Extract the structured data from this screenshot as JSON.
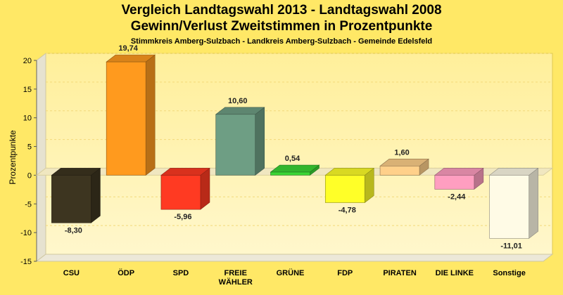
{
  "chart_data": {
    "type": "bar",
    "title": "Vergleich Landtagswahl 2013 - Landtagswahl 2008",
    "subtitle": "Gewinn/Verlust Zweitstimmen in Prozentpunkte",
    "subsubtitle": "Stimmkreis Amberg-Sulzbach - Landkreis Amberg-Sulzbach - Gemeinde Edelsfeld",
    "ylabel": "Prozentpunkte",
    "xlabel": "",
    "ylim": [
      -15,
      20
    ],
    "yticks": [
      20,
      15,
      10,
      5,
      0,
      -5,
      -10,
      -15
    ],
    "yticklabels": [
      "20",
      "15",
      "10",
      "5",
      "0",
      "-5",
      "-10",
      "-15"
    ],
    "grid": true,
    "categories": [
      [
        "CSU"
      ],
      [
        "ÖDP"
      ],
      [
        "SPD"
      ],
      [
        "FREIE",
        "WÄHLER"
      ],
      [
        "GRÜNE"
      ],
      [
        "FDP"
      ],
      [
        "PIRATEN"
      ],
      [
        "DIE LINKE"
      ],
      [
        "Sonstige"
      ]
    ],
    "values": [
      -8.3,
      19.74,
      -5.96,
      10.6,
      0.54,
      -4.78,
      1.6,
      -2.44,
      -11.01
    ],
    "value_labels": [
      "-8,30",
      "19,74",
      "-5,96",
      "10,60",
      "0,54",
      "-4,78",
      "1,60",
      "-2,44",
      "-11,01"
    ],
    "colors": [
      "#3d3520",
      "#ff9a1e",
      "#ff3a22",
      "#6e9e84",
      "#3bd636",
      "#ffff28",
      "#ffd08a",
      "#ff9ec0",
      "#fffbe6"
    ]
  }
}
